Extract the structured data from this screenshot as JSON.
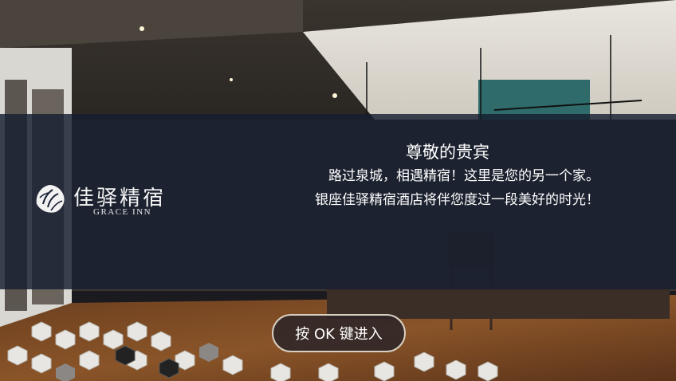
{
  "brand": {
    "name_cn": "佳驿精宿",
    "name_en": "GRACE INN",
    "logo_icon": "lotus-flower-icon"
  },
  "welcome": {
    "title": "尊敬的贵宾",
    "line1": "路过泉城，相遇精宿！这里是您的另一个家。",
    "line2": "银座佳驿精宿酒店将伴您度过一段美好的时光！"
  },
  "enter_button": {
    "label": "按 OK 键进入"
  },
  "colors": {
    "banner": "#161e30",
    "button_border": "#d8cfc2",
    "text": "#ffffff"
  }
}
